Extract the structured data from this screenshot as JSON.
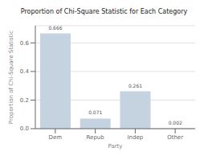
{
  "chart_data": {
    "type": "bar",
    "title": "Proportion of Chi-Square Statistic for Each Category",
    "xlabel": "Party",
    "ylabel": "Proportion of Chi-Square Statistic",
    "categories": [
      "Dem",
      "Repub",
      "Indep",
      "Other"
    ],
    "values": [
      0.666,
      0.071,
      0.261,
      0.002
    ],
    "color": "#c5d3e0",
    "ylim": [
      0,
      0.72
    ],
    "yticks": [
      {
        "value": 0,
        "label": "0.0"
      },
      0.2,
      0.4,
      0.6
    ],
    "grid": true,
    "data_labels": true
  }
}
